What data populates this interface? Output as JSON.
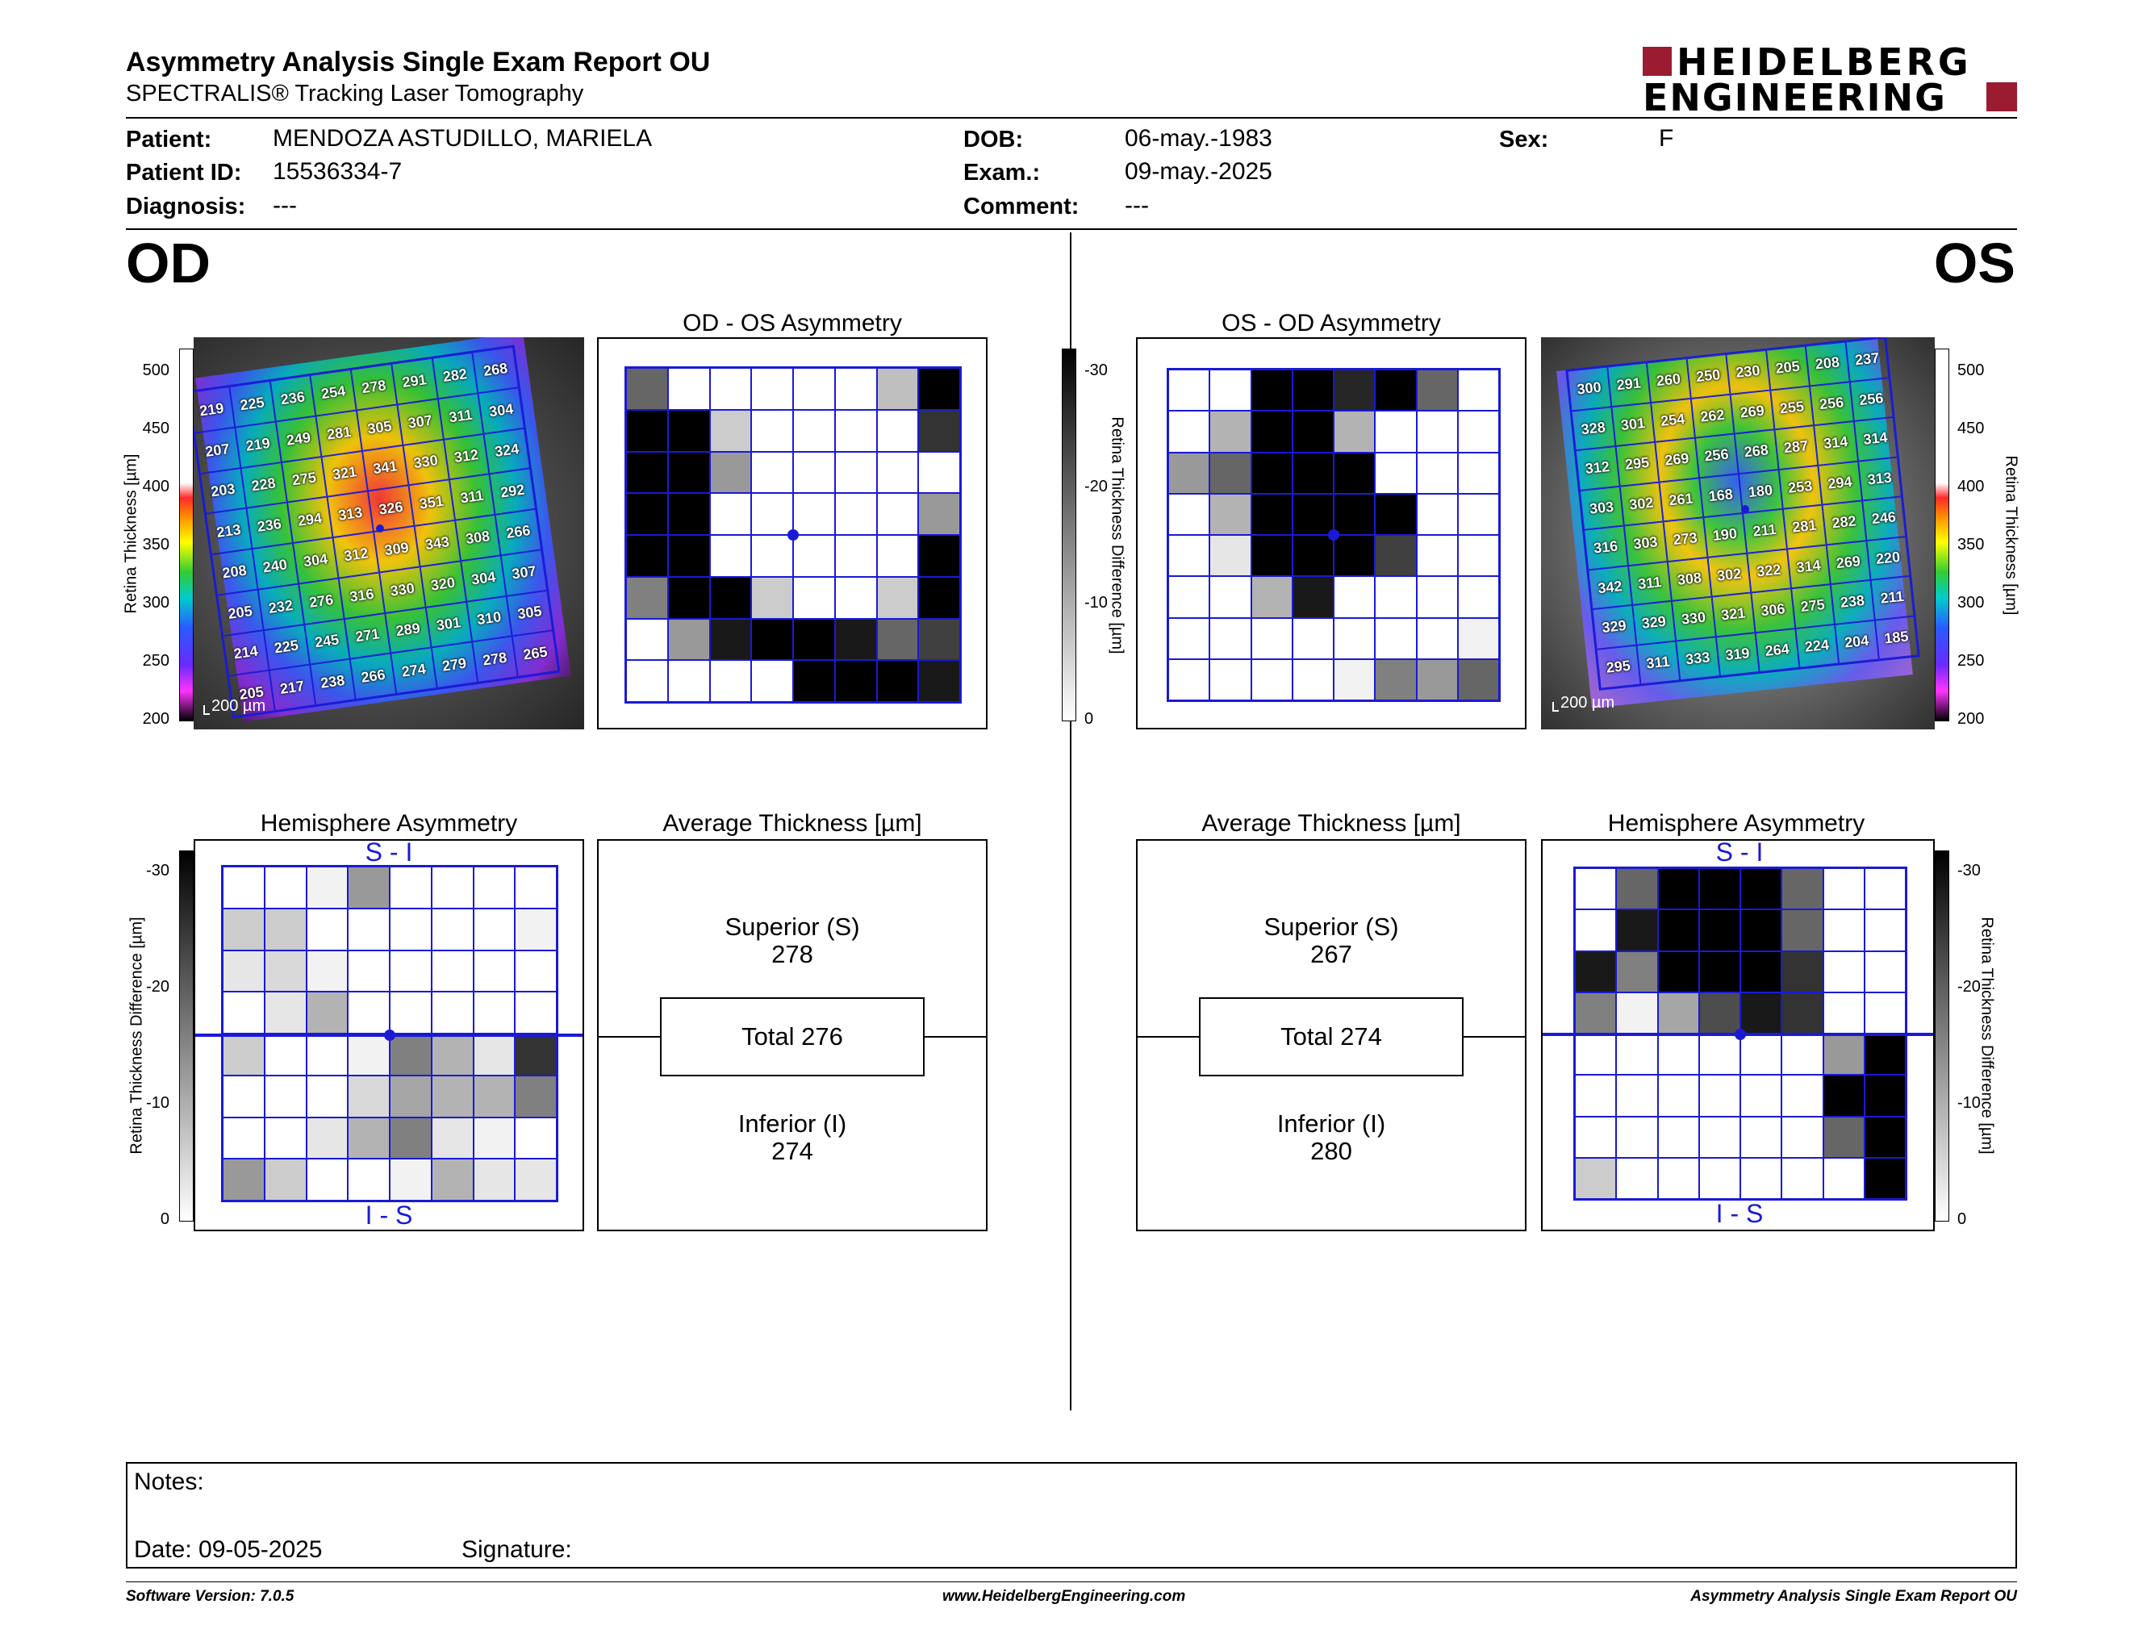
{
  "header": {
    "title": "Asymmetry Analysis Single Exam Report OU",
    "subtitle": "SPECTRALIS® Tracking Laser Tomography",
    "logo_line1": "HEIDELBERG",
    "logo_line2": "ENGINEERING",
    "brand_color": "#9b1b30"
  },
  "patient": {
    "patient_label": "Patient:",
    "patient_value": "MENDOZA ASTUDILLO, MARIELA",
    "id_label": "Patient ID:",
    "id_value": "15536334-7",
    "diagnosis_label": "Diagnosis:",
    "diagnosis_value": "---",
    "dob_label": "DOB:",
    "dob_value": "06-may.-1983",
    "exam_label": "Exam.:",
    "exam_value": "09-may.-2025",
    "comment_label": "Comment:",
    "comment_value": "---",
    "sex_label": "Sex:",
    "sex_value": "F"
  },
  "od": {
    "eye_label": "OD",
    "asym_title": "OD - OS Asymmetry",
    "hemi_title": "Hemisphere Asymmetry",
    "avg_title": "Average Thickness [µm]",
    "superior_label": "Superior (S)",
    "superior_value": "278",
    "total_label": "Total 276",
    "inferior_label": "Inferior (I)",
    "inferior_value": "274",
    "scale_label": "200 µm",
    "si_label": "S - I",
    "is_label": "I - S",
    "thickness_grid": [
      [
        "219",
        "225",
        "236",
        "254",
        "278",
        "291",
        "282",
        "268"
      ],
      [
        "207",
        "219",
        "249",
        "281",
        "305",
        "307",
        "311",
        "304"
      ],
      [
        "203",
        "228",
        "275",
        "321",
        "341",
        "330",
        "312",
        "324"
      ],
      [
        "213",
        "236",
        "294",
        "313",
        "326",
        "351",
        "311",
        "292"
      ],
      [
        "208",
        "240",
        "304",
        "312",
        "309",
        "343",
        "308",
        "266"
      ],
      [
        "205",
        "232",
        "276",
        "316",
        "330",
        "320",
        "304",
        "307"
      ],
      [
        "214",
        "225",
        "245",
        "271",
        "289",
        "301",
        "310",
        "305"
      ],
      [
        "205",
        "217",
        "238",
        "266",
        "274",
        "279",
        "278",
        "265"
      ]
    ],
    "asym_grid": [
      [
        0.6,
        0,
        0,
        0,
        0,
        0,
        0.25,
        1
      ],
      [
        1,
        1,
        0.2,
        0,
        0,
        0,
        0,
        0.8
      ],
      [
        1,
        1,
        0.4,
        0,
        0,
        0,
        0,
        0
      ],
      [
        1,
        1,
        0,
        0,
        0,
        0,
        0,
        0.4
      ],
      [
        1,
        1,
        0,
        0,
        0,
        0,
        0,
        1
      ],
      [
        0.5,
        1,
        1,
        0.2,
        0,
        0,
        0.2,
        1
      ],
      [
        0,
        0.4,
        0.9,
        1,
        1,
        0.9,
        0.6,
        0.75
      ],
      [
        0,
        0,
        0,
        0,
        1,
        1,
        1,
        0.9
      ]
    ],
    "hemi_grid": [
      [
        0,
        0,
        0.05,
        0.4,
        0,
        0,
        0,
        0
      ],
      [
        0.2,
        0.2,
        0,
        0,
        0,
        0,
        0,
        0.05
      ],
      [
        0.1,
        0.15,
        0.05,
        0,
        0,
        0,
        0,
        0
      ],
      [
        0,
        0.1,
        0.3,
        0,
        0,
        0,
        0,
        0
      ],
      [
        0.2,
        0,
        0,
        0.05,
        0.5,
        0.3,
        0.1,
        0.8
      ],
      [
        0,
        0,
        0,
        0.15,
        0.35,
        0.3,
        0.3,
        0.5
      ],
      [
        0,
        0,
        0.1,
        0.3,
        0.5,
        0.1,
        0.05,
        0
      ],
      [
        0.4,
        0.2,
        0,
        0,
        0.05,
        0.3,
        0.1,
        0.1
      ]
    ]
  },
  "os": {
    "eye_label": "OS",
    "asym_title": "OS - OD Asymmetry",
    "hemi_title": "Hemisphere Asymmetry",
    "avg_title": "Average Thickness [µm]",
    "superior_label": "Superior (S)",
    "superior_value": "267",
    "total_label": "Total 274",
    "inferior_label": "Inferior (I)",
    "inferior_value": "280",
    "scale_label": "200 µm",
    "si_label": "S - I",
    "is_label": "I - S",
    "thickness_grid": [
      [
        "300",
        "291",
        "260",
        "250",
        "230",
        "205",
        "208",
        "237"
      ],
      [
        "328",
        "301",
        "254",
        "262",
        "269",
        "255",
        "256",
        "256"
      ],
      [
        "312",
        "295",
        "269",
        "256",
        "268",
        "287",
        "314",
        "314"
      ],
      [
        "303",
        "302",
        "261",
        "168",
        "180",
        "253",
        "294",
        "313"
      ],
      [
        "316",
        "303",
        "273",
        "190",
        "211",
        "281",
        "282",
        "246"
      ],
      [
        "342",
        "311",
        "308",
        "302",
        "322",
        "314",
        "269",
        "220"
      ],
      [
        "329",
        "329",
        "330",
        "321",
        "306",
        "275",
        "238",
        "211"
      ],
      [
        "295",
        "311",
        "333",
        "319",
        "264",
        "224",
        "204",
        "185"
      ]
    ],
    "asym_grid": [
      [
        0,
        0,
        1,
        1,
        0.85,
        1,
        0.6,
        0
      ],
      [
        0,
        0.3,
        1,
        1,
        0.3,
        0,
        0,
        0
      ],
      [
        0.4,
        0.6,
        1,
        1,
        1,
        0,
        0,
        0
      ],
      [
        0,
        0.3,
        1,
        1,
        1,
        1,
        0,
        0
      ],
      [
        0,
        0.1,
        1,
        1,
        1,
        0.75,
        0,
        0
      ],
      [
        0,
        0,
        0.3,
        0.9,
        0,
        0,
        0,
        0
      ],
      [
        0,
        0,
        0,
        0,
        0,
        0,
        0,
        0.05
      ],
      [
        0,
        0,
        0,
        0,
        0.05,
        0.5,
        0.4,
        0.6
      ]
    ],
    "hemi_grid": [
      [
        0,
        0.6,
        1,
        1,
        1,
        0.6,
        0,
        0
      ],
      [
        0,
        0.9,
        1,
        1,
        1,
        0.6,
        0,
        0
      ],
      [
        0.9,
        0.5,
        1,
        1,
        1,
        0.8,
        0,
        0
      ],
      [
        0.5,
        0.05,
        0.35,
        0.7,
        0.9,
        0.8,
        0,
        0
      ],
      [
        0,
        0,
        0,
        0,
        0,
        0,
        0.4,
        1
      ],
      [
        0,
        0,
        0,
        0,
        0,
        0,
        1,
        1
      ],
      [
        0,
        0,
        0,
        0,
        0,
        0,
        0.6,
        1
      ],
      [
        0.2,
        0,
        0,
        0,
        0,
        0,
        0,
        1
      ]
    ]
  },
  "scales": {
    "thickness_label": "Retina Thickness [µm]",
    "thickness_ticks": [
      "500",
      "450",
      "400",
      "350",
      "300",
      "250",
      "200"
    ],
    "diff_label": "Retina Thickness Difference [µm]",
    "diff_ticks": [
      "-30",
      "-20",
      "-10",
      "0"
    ]
  },
  "notes": {
    "notes_label": "Notes:",
    "date_label": "Date: 09-05-2025",
    "signature_label": "Signature:"
  },
  "footer": {
    "software": "Software Version: 7.0.5",
    "website": "www.HeidelbergEngineering.com",
    "report_name": "Asymmetry Analysis Single Exam Report OU"
  }
}
